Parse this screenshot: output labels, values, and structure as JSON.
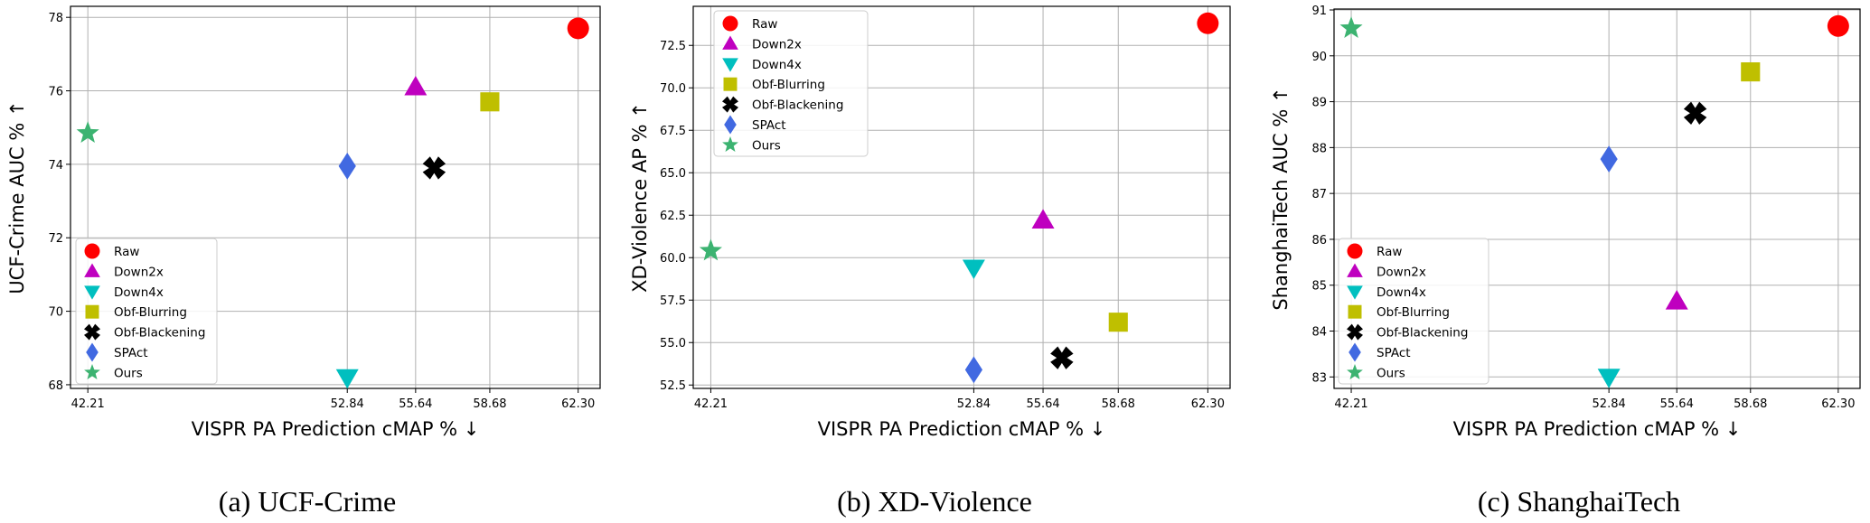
{
  "chart_data": [
    {
      "type": "scatter",
      "caption": "(a) UCF-Crime",
      "xlabel": "VISPR PA Prediction cMAP %  ↓",
      "ylabel": "UCF-Crime AUC %  ↑",
      "x_ticks": [
        "42.21",
        "52.84",
        "55.64",
        "58.68",
        "62.30"
      ],
      "x_tick_values": [
        42.21,
        52.84,
        55.64,
        58.68,
        62.3
      ],
      "y_ticks": [
        "68",
        "70",
        "72",
        "74",
        "76",
        "78"
      ],
      "y_tick_values": [
        68,
        70,
        72,
        74,
        76,
        78
      ],
      "xlim": [
        41.5,
        63.2
      ],
      "ylim": [
        67.9,
        78.3
      ],
      "grid": true,
      "legend_position": "lower-left",
      "series": [
        {
          "name": "Raw",
          "marker": "circle",
          "color": "#ff0000",
          "x": 62.3,
          "y": 77.7
        },
        {
          "name": "Down2x",
          "marker": "triangle-up",
          "color": "#bf00bf",
          "x": 55.64,
          "y": 76.1
        },
        {
          "name": "Down4x",
          "marker": "triangle-down",
          "color": "#00bfbf",
          "x": 52.84,
          "y": 68.2
        },
        {
          "name": "Obf-Blurring",
          "marker": "square",
          "color": "#bfbf00",
          "x": 58.68,
          "y": 75.7
        },
        {
          "name": "Obf-Blackening",
          "marker": "x",
          "color": "#000000",
          "x": 56.4,
          "y": 73.9
        },
        {
          "name": "SPAct",
          "marker": "diamond",
          "color": "#4169e1",
          "x": 52.84,
          "y": 73.95
        },
        {
          "name": "Ours",
          "marker": "star",
          "color": "#3cb371",
          "x": 42.21,
          "y": 74.85
        }
      ]
    },
    {
      "type": "scatter",
      "caption": "(b) XD-Violence",
      "xlabel": "VISPR PA Prediction cMAP %  ↓",
      "ylabel": "XD-Violence AP %  ↑",
      "x_ticks": [
        "42.21",
        "52.84",
        "55.64",
        "58.68",
        "62.30"
      ],
      "x_tick_values": [
        42.21,
        52.84,
        55.64,
        58.68,
        62.3
      ],
      "y_ticks": [
        "52.5",
        "55.0",
        "57.5",
        "60.0",
        "62.5",
        "65.0",
        "67.5",
        "70.0",
        "72.5"
      ],
      "y_tick_values": [
        52.5,
        55.0,
        57.5,
        60.0,
        62.5,
        65.0,
        67.5,
        70.0,
        72.5
      ],
      "xlim": [
        41.5,
        63.2
      ],
      "ylim": [
        52.3,
        74.8
      ],
      "grid": true,
      "legend_position": "top-left",
      "series": [
        {
          "name": "Raw",
          "marker": "circle",
          "color": "#ff0000",
          "x": 62.3,
          "y": 73.8
        },
        {
          "name": "Down2x",
          "marker": "triangle-up",
          "color": "#bf00bf",
          "x": 55.64,
          "y": 62.2
        },
        {
          "name": "Down4x",
          "marker": "triangle-down",
          "color": "#00bfbf",
          "x": 52.84,
          "y": 59.4
        },
        {
          "name": "Obf-Blurring",
          "marker": "square",
          "color": "#bfbf00",
          "x": 58.68,
          "y": 56.2
        },
        {
          "name": "Obf-Blackening",
          "marker": "x",
          "color": "#000000",
          "x": 56.4,
          "y": 54.1
        },
        {
          "name": "SPAct",
          "marker": "diamond",
          "color": "#4169e1",
          "x": 52.84,
          "y": 53.4
        },
        {
          "name": "Ours",
          "marker": "star",
          "color": "#3cb371",
          "x": 42.21,
          "y": 60.4
        }
      ]
    },
    {
      "type": "scatter",
      "caption": "(c) ShanghaiTech",
      "xlabel": "VISPR PA Prediction cMAP %  ↓",
      "ylabel": "ShanghaiTech AUC %  ↑",
      "x_ticks": [
        "42.21",
        "52.84",
        "55.64",
        "58.68",
        "62.30"
      ],
      "x_tick_values": [
        42.21,
        52.84,
        55.64,
        58.68,
        62.3
      ],
      "y_ticks": [
        "83",
        "84",
        "85",
        "86",
        "87",
        "88",
        "89",
        "90",
        "91"
      ],
      "y_tick_values": [
        83,
        84,
        85,
        86,
        87,
        88,
        89,
        90,
        91
      ],
      "xlim": [
        41.5,
        63.2
      ],
      "ylim": [
        82.75,
        91.02
      ],
      "grid": true,
      "legend_position": "lower-left",
      "series": [
        {
          "name": "Raw",
          "marker": "circle",
          "color": "#ff0000",
          "x": 62.3,
          "y": 90.65
        },
        {
          "name": "Down2x",
          "marker": "triangle-up",
          "color": "#bf00bf",
          "x": 55.64,
          "y": 84.65
        },
        {
          "name": "Down4x",
          "marker": "triangle-down",
          "color": "#00bfbf",
          "x": 52.84,
          "y": 83.0
        },
        {
          "name": "Obf-Blurring",
          "marker": "square",
          "color": "#bfbf00",
          "x": 58.68,
          "y": 89.65
        },
        {
          "name": "Obf-Blackening",
          "marker": "x",
          "color": "#000000",
          "x": 56.4,
          "y": 88.75
        },
        {
          "name": "SPAct",
          "marker": "diamond",
          "color": "#4169e1",
          "x": 52.84,
          "y": 87.75
        },
        {
          "name": "Ours",
          "marker": "star",
          "color": "#3cb371",
          "x": 42.21,
          "y": 90.6
        }
      ]
    }
  ]
}
